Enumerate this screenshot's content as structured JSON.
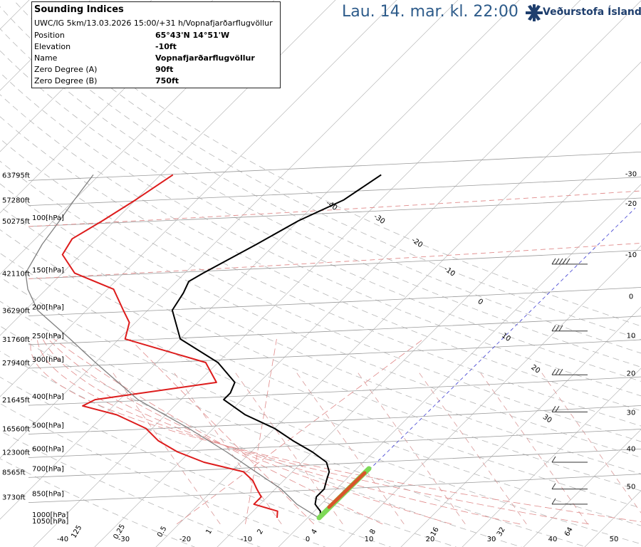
{
  "header": {
    "datetime": "Lau. 14. mar. kl. 22:00",
    "brand": "Veðurstofa Íslands"
  },
  "info": {
    "title": "Sounding Indices",
    "subtitle": "UWC/IG 5km/13.03.2026 15:00/+31 h/Vopnafjarðarflugvöllur",
    "rows": [
      {
        "label": "Position",
        "value": "65°43'N 14°51'W"
      },
      {
        "label": "Elevation",
        "value": "-10ft"
      },
      {
        "label": "Name",
        "value": "Vopnafjarðarflugvöllur"
      },
      {
        "label": "Zero Degree (A)",
        "value": "90ft"
      },
      {
        "label": "Zero Degree (B)",
        "value": "750ft"
      }
    ]
  },
  "chart_data": {
    "type": "line",
    "title": "Skew-T log-P sounding",
    "altitude_labels": [
      {
        "label": "63795ft",
        "p": 70
      },
      {
        "label": "57280ft",
        "p": 85
      },
      {
        "label": "50275ft",
        "p": 100
      },
      {
        "label": "42110ft",
        "p": 150
      },
      {
        "label": "36290ft",
        "p": 200
      },
      {
        "label": "31760ft",
        "p": 250
      },
      {
        "label": "27940ft",
        "p": 300
      },
      {
        "label": "21645ft",
        "p": 400
      },
      {
        "label": "16560ft",
        "p": 500
      },
      {
        "label": "12300ft",
        "p": 600
      },
      {
        "label": "8565ft",
        "p": 700
      },
      {
        "label": "3730ft",
        "p": 850
      }
    ],
    "pressure_labels": [
      {
        "label": "100[hPa]",
        "p": 100
      },
      {
        "label": "150[hPa]",
        "p": 150
      },
      {
        "label": "200[hPa]",
        "p": 200
      },
      {
        "label": "250[hPa]",
        "p": 250
      },
      {
        "label": "300[hPa]",
        "p": 300
      },
      {
        "label": "400[hPa]",
        "p": 400
      },
      {
        "label": "500[hPa]",
        "p": 500
      },
      {
        "label": "600[hPa]",
        "p": 600
      },
      {
        "label": "700[hPa]",
        "p": 700
      },
      {
        "label": "850[hPa]",
        "p": 850
      },
      {
        "label": "1000[hPa]",
        "p": 1000
      },
      {
        "label": "1050[hPa]",
        "p": 1050
      }
    ],
    "isotherm_labels": [
      {
        "label": "-30",
        "t": -30,
        "p": 70
      },
      {
        "label": "-20",
        "t": -20,
        "p": 88
      },
      {
        "label": "-10",
        "t": -10,
        "p": 131
      },
      {
        "label": "0",
        "t": 0,
        "p": 181
      },
      {
        "label": "10",
        "t": 10,
        "p": 245
      },
      {
        "label": "20",
        "t": 20,
        "p": 329
      },
      {
        "label": "30",
        "t": 30,
        "p": 445
      },
      {
        "label": "40",
        "t": 40,
        "p": 590
      },
      {
        "label": "50",
        "t": 50,
        "p": 790
      }
    ],
    "bottom_temp_labels": [
      {
        "label": "-40",
        "t": -40
      },
      {
        "label": "-30",
        "t": -30
      },
      {
        "label": "-20",
        "t": -20
      },
      {
        "label": "-10",
        "t": -10
      },
      {
        "label": "0",
        "t": 0
      },
      {
        "label": "10",
        "t": 10
      },
      {
        "label": "20",
        "t": 20
      },
      {
        "label": "30",
        "t": 30
      },
      {
        "label": "40",
        "t": 40
      },
      {
        "label": "50",
        "t": 50
      }
    ],
    "mixing_ratio_labels": [
      "0.25",
      "0.5",
      "1",
      "2",
      "4",
      "8",
      "16",
      "32",
      "64",
      "125"
    ],
    "skew_temp_labels": [
      {
        "label": "30",
        "t": 30
      },
      {
        "label": "20",
        "t": 20
      },
      {
        "label": "10",
        "t": 10
      },
      {
        "label": "0",
        "t": 0
      },
      {
        "label": "-10",
        "t": -10
      },
      {
        "label": "-20",
        "t": -20
      },
      {
        "label": "-30",
        "t": -30
      },
      {
        "label": "-40",
        "t": -40
      }
    ],
    "series": [
      {
        "name": "temperature",
        "color": "#000000",
        "points": [
          [
            1000,
            2
          ],
          [
            950,
            1
          ],
          [
            925,
            0
          ],
          [
            900,
            -1
          ],
          [
            850,
            -2
          ],
          [
            800,
            -2
          ],
          [
            750,
            -3
          ],
          [
            700,
            -4
          ],
          [
            650,
            -6
          ],
          [
            600,
            -10
          ],
          [
            550,
            -15
          ],
          [
            500,
            -20
          ],
          [
            450,
            -27
          ],
          [
            400,
            -33
          ],
          [
            380,
            -33
          ],
          [
            350,
            -34
          ],
          [
            300,
            -40
          ],
          [
            250,
            -50
          ],
          [
            200,
            -56
          ],
          [
            175,
            -57
          ],
          [
            160,
            -58
          ],
          [
            150,
            -57
          ],
          [
            120,
            -53
          ],
          [
            100,
            -50
          ],
          [
            85,
            -46
          ],
          [
            70,
            -44
          ]
        ]
      },
      {
        "name": "dewpoint",
        "color": "#dd1c1c",
        "points": [
          [
            1000,
            -5
          ],
          [
            950,
            -6
          ],
          [
            900,
            -11
          ],
          [
            850,
            -11
          ],
          [
            800,
            -13
          ],
          [
            750,
            -15
          ],
          [
            700,
            -18
          ],
          [
            650,
            -26
          ],
          [
            600,
            -32
          ],
          [
            550,
            -37
          ],
          [
            500,
            -41
          ],
          [
            450,
            -48
          ],
          [
            420,
            -55
          ],
          [
            400,
            -54
          ],
          [
            350,
            -37
          ],
          [
            300,
            -42
          ],
          [
            250,
            -59
          ],
          [
            220,
            -61
          ],
          [
            200,
            -64
          ],
          [
            170,
            -69
          ],
          [
            150,
            -78
          ],
          [
            130,
            -83
          ],
          [
            115,
            -84
          ],
          [
            100,
            -82
          ],
          [
            85,
            -80
          ],
          [
            70,
            -78
          ]
        ]
      },
      {
        "name": "parcel",
        "color": "#808080",
        "points": [
          [
            1000,
            1.8
          ],
          [
            900,
            -4
          ],
          [
            800,
            -9
          ],
          [
            700,
            -16
          ],
          [
            600,
            -24
          ],
          [
            500,
            -34
          ],
          [
            400,
            -47
          ],
          [
            300,
            -60
          ],
          [
            250,
            -68
          ],
          [
            200,
            -78
          ],
          [
            170,
            -83
          ],
          [
            150,
            -86
          ],
          [
            120,
            -88
          ],
          [
            100,
            -89
          ],
          [
            85,
            -90
          ],
          [
            70,
            -91
          ]
        ]
      }
    ],
    "wind_barbs": [
      {
        "p": 140,
        "label": "50kt"
      },
      {
        "p": 235,
        "label": "30kt"
      },
      {
        "p": 330,
        "label": "30kt"
      },
      {
        "p": 440,
        "label": "15kt"
      },
      {
        "p": 650,
        "label": "5kt"
      },
      {
        "p": 800,
        "label": "10kt"
      },
      {
        "p": 900,
        "label": "10kt"
      }
    ]
  }
}
